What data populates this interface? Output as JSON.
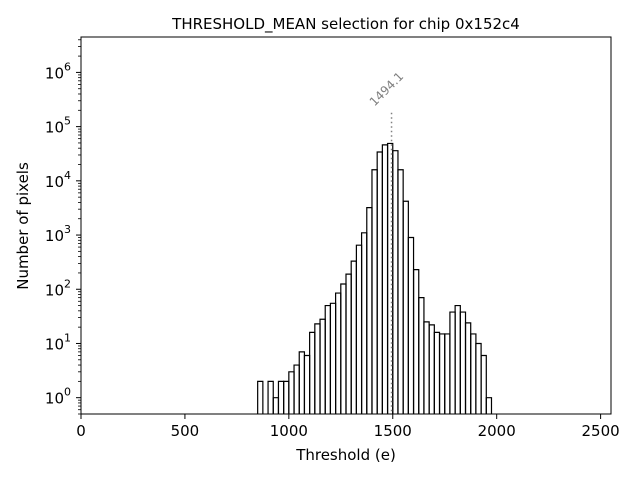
{
  "chart_data": {
    "type": "histogram",
    "title": "THRESHOLD_MEAN selection for chip 0x152c4",
    "xlabel": "Threshold (e)",
    "ylabel": "Number of pixels",
    "xlim": [
      0,
      2550
    ],
    "ylim": [
      0.5,
      4500000
    ],
    "yscale": "log",
    "bin_width": 25,
    "x_ticks": [
      0,
      500,
      1000,
      1500,
      2000,
      2500
    ],
    "x_tick_labels": [
      "0",
      "500",
      "1000",
      "1500",
      "2000",
      "2500"
    ],
    "y_ticks": [
      1,
      10,
      100,
      1000,
      10000,
      100000,
      1000000
    ],
    "y_tick_labels": [
      {
        "base": "10",
        "exp": "0"
      },
      {
        "base": "10",
        "exp": "1"
      },
      {
        "base": "10",
        "exp": "2"
      },
      {
        "base": "10",
        "exp": "3"
      },
      {
        "base": "10",
        "exp": "4"
      },
      {
        "base": "10",
        "exp": "5"
      },
      {
        "base": "10",
        "exp": "6"
      }
    ],
    "bins": [
      {
        "x0": 850,
        "count": 2
      },
      {
        "x0": 875,
        "count": 0
      },
      {
        "x0": 900,
        "count": 2
      },
      {
        "x0": 925,
        "count": 1
      },
      {
        "x0": 950,
        "count": 2
      },
      {
        "x0": 975,
        "count": 2
      },
      {
        "x0": 1000,
        "count": 3
      },
      {
        "x0": 1025,
        "count": 4
      },
      {
        "x0": 1050,
        "count": 7
      },
      {
        "x0": 1075,
        "count": 6
      },
      {
        "x0": 1100,
        "count": 16
      },
      {
        "x0": 1125,
        "count": 23
      },
      {
        "x0": 1150,
        "count": 28
      },
      {
        "x0": 1175,
        "count": 50
      },
      {
        "x0": 1200,
        "count": 55
      },
      {
        "x0": 1225,
        "count": 85
      },
      {
        "x0": 1250,
        "count": 125
      },
      {
        "x0": 1275,
        "count": 190
      },
      {
        "x0": 1300,
        "count": 330
      },
      {
        "x0": 1325,
        "count": 650
      },
      {
        "x0": 1350,
        "count": 1100
      },
      {
        "x0": 1375,
        "count": 3200
      },
      {
        "x0": 1400,
        "count": 16000
      },
      {
        "x0": 1425,
        "count": 34000
      },
      {
        "x0": 1450,
        "count": 46000
      },
      {
        "x0": 1475,
        "count": 49000
      },
      {
        "x0": 1500,
        "count": 36000
      },
      {
        "x0": 1525,
        "count": 16000
      },
      {
        "x0": 1550,
        "count": 4200
      },
      {
        "x0": 1575,
        "count": 900
      },
      {
        "x0": 1600,
        "count": 230
      },
      {
        "x0": 1625,
        "count": 70
      },
      {
        "x0": 1650,
        "count": 25
      },
      {
        "x0": 1675,
        "count": 22
      },
      {
        "x0": 1700,
        "count": 16
      },
      {
        "x0": 1725,
        "count": 15
      },
      {
        "x0": 1750,
        "count": 15
      },
      {
        "x0": 1775,
        "count": 38
      },
      {
        "x0": 1800,
        "count": 50
      },
      {
        "x0": 1825,
        "count": 38
      },
      {
        "x0": 1850,
        "count": 24
      },
      {
        "x0": 1875,
        "count": 15
      },
      {
        "x0": 1900,
        "count": 10
      },
      {
        "x0": 1925,
        "count": 6
      },
      {
        "x0": 1950,
        "count": 1
      },
      {
        "x0": 1975,
        "count": 0
      }
    ],
    "marker": {
      "x": 1494.1,
      "label": "1494.1",
      "y_top": 180000,
      "color": "#808080",
      "style": "dotted"
    },
    "line_color": "#000000"
  }
}
